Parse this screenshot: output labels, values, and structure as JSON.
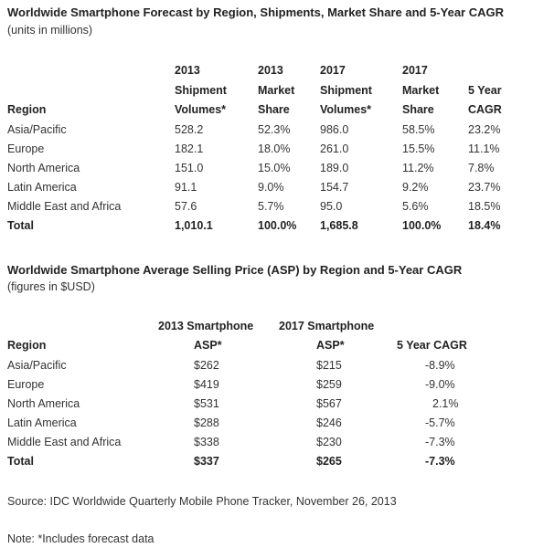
{
  "table1": {
    "title": "Worldwide Smartphone Forecast by Region, Shipments, Market Share and 5-Year CAGR",
    "subtitle": "(units in millions)",
    "headers": {
      "region": "Region",
      "col1": [
        "2013",
        "Shipment",
        "Volumes*"
      ],
      "col2": [
        "2013",
        "Market",
        "Share"
      ],
      "col3": [
        "2017",
        "Shipment",
        "Volumes*"
      ],
      "col4": [
        "2017",
        "Market",
        "Share"
      ],
      "col5": [
        "5 Year",
        "CAGR"
      ]
    },
    "rows": [
      {
        "region": "Asia/Pacific",
        "v2013": "528.2",
        "s2013": "52.3%",
        "v2017": "986.0",
        "s2017": "58.5%",
        "cagr": "23.2%"
      },
      {
        "region": "Europe",
        "v2013": "182.1",
        "s2013": "18.0%",
        "v2017": "261.0",
        "s2017": "15.5%",
        "cagr": "11.1%"
      },
      {
        "region": "North America",
        "v2013": "151.0",
        "s2013": "15.0%",
        "v2017": "189.0",
        "s2017": "11.2%",
        "cagr": "7.8%"
      },
      {
        "region": "Latin America",
        "v2013": "91.1",
        "s2013": "9.0%",
        "v2017": "154.7",
        "s2017": "9.2%",
        "cagr": "23.7%"
      },
      {
        "region": "Middle East and Africa",
        "v2013": "57.6",
        "s2013": "5.7%",
        "v2017": "95.0",
        "s2017": "5.6%",
        "cagr": "18.5%"
      }
    ],
    "total": {
      "region": "Total",
      "v2013": "1,010.1",
      "s2013": "100.0%",
      "v2017": "1,685.8",
      "s2017": "100.0%",
      "cagr": "18.4%"
    }
  },
  "table2": {
    "title": "Worldwide Smartphone Average Selling Price (ASP) by Region and 5-Year CAGR",
    "subtitle": "(figures in $USD)",
    "headers": {
      "region": "Region",
      "col1": [
        "2013 Smartphone",
        "ASP*"
      ],
      "col2": [
        "2017 Smartphone",
        "ASP*"
      ],
      "col3": "5 Year CAGR"
    },
    "rows": [
      {
        "region": "Asia/Pacific",
        "asp2013": "$262",
        "asp2017": "$215",
        "cagr": "-8.9%"
      },
      {
        "region": "Europe",
        "asp2013": "$419",
        "asp2017": "$259",
        "cagr": "-9.0%"
      },
      {
        "region": "North America",
        "asp2013": "$531",
        "asp2017": "$567",
        "cagr": "2.1%"
      },
      {
        "region": "Latin America",
        "asp2013": "$288",
        "asp2017": "$246",
        "cagr": "-5.7%"
      },
      {
        "region": "Middle East and Africa",
        "asp2013": "$338",
        "asp2017": "$230",
        "cagr": "-7.3%"
      }
    ],
    "total": {
      "region": "Total",
      "asp2013": "$337",
      "asp2017": "$265",
      "cagr": "-7.3%"
    }
  },
  "source": "Source:  IDC Worldwide Quarterly Mobile Phone Tracker, November 26, 2013",
  "note": "Note:  *Includes forecast data"
}
